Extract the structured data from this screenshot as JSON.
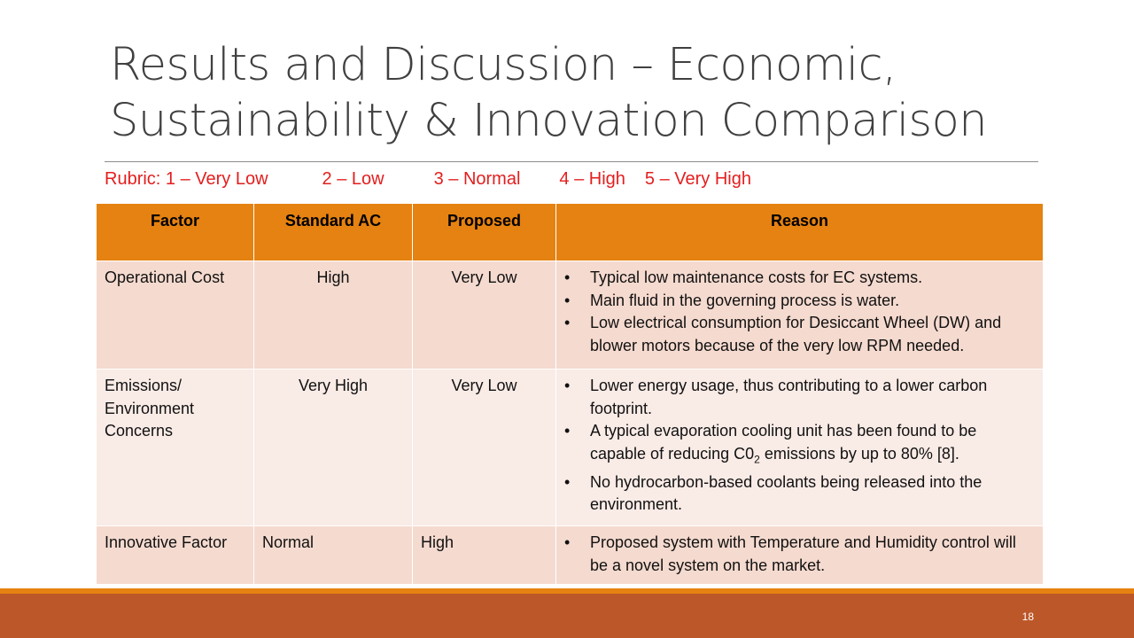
{
  "slide": {
    "title_line1": "Results and Discussion – Economic,",
    "title_line2": "Sustainability & Innovation Comparison",
    "page_number": "18"
  },
  "rubric": {
    "items": [
      "Rubric: 1 – Very Low",
      "2 – Low",
      "3 – Normal",
      "4 – High",
      "5 – Very High"
    ],
    "color": "#e31e1e"
  },
  "table": {
    "headers": [
      "Factor",
      "Standard AC",
      "Proposed",
      "Reason"
    ],
    "rows": [
      {
        "factor": "Operational Cost",
        "standard_ac": "High",
        "proposed": "Very Low",
        "reasons": [
          "Typical low maintenance costs for EC systems.",
          "Main fluid in the governing process is water.",
          "Low electrical consumption for Desiccant Wheel (DW) and blower motors because of the very low RPM needed."
        ]
      },
      {
        "factor_line1": "Emissions/",
        "factor_line2": "Environment",
        "factor_line3": "Concerns",
        "standard_ac": "Very High",
        "proposed": "Very Low",
        "reasons": [
          "Lower energy usage, thus contributing to a lower carbon footprint.",
          "A typical evaporation cooling unit has been found to be capable of reducing C0",
          "No hydrocarbon-based coolants being released into the environment."
        ],
        "reason2_subscript": "2",
        "reason2_tail": " emissions by up to 80% [8]."
      },
      {
        "factor": "Innovative Factor",
        "standard_ac": "Normal",
        "proposed": "High",
        "reasons": [
          "Proposed system with Temperature and Humidity control will be a novel system on the market."
        ]
      }
    ],
    "colors": {
      "header_bg": "#e58211",
      "row_dark": "#f5dacf",
      "row_light": "#f9ebe6"
    }
  },
  "footer": {
    "accent_line": "#e58211",
    "bar": "#bc5729"
  }
}
